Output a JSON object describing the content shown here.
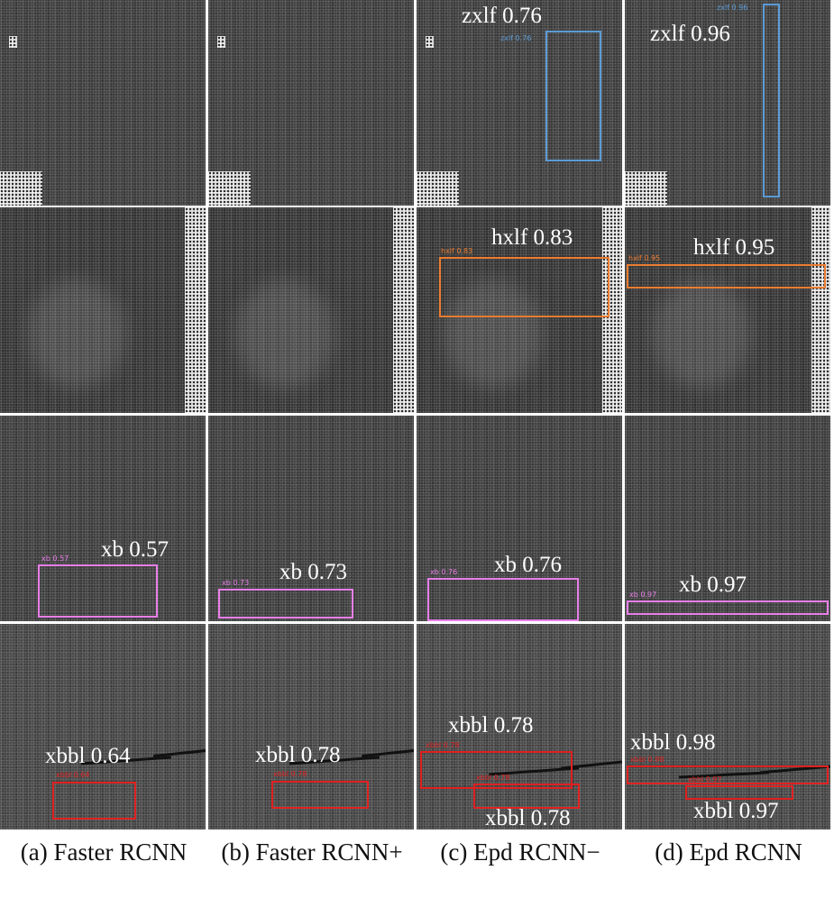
{
  "colors": {
    "zxlf": "#5b9bd5",
    "hxlf": "#ed7d31",
    "xb": "#e87fe8",
    "xbbl": "#e02020"
  },
  "rows": [
    {
      "class": "zxlf",
      "cells": [
        {
          "column": "a",
          "detections": []
        },
        {
          "column": "b",
          "detections": []
        },
        {
          "column": "c",
          "detections": [
            {
              "small": "zxlf 0.76",
              "big": "zxlf 0.76",
              "score": 0.76
            }
          ]
        },
        {
          "column": "d",
          "detections": [
            {
              "small": "zxlf 0.96",
              "big": "zxlf 0.96",
              "score": 0.96
            }
          ]
        }
      ]
    },
    {
      "class": "hxlf",
      "cells": [
        {
          "column": "a",
          "detections": []
        },
        {
          "column": "b",
          "detections": []
        },
        {
          "column": "c",
          "detections": [
            {
              "small": "hxlf 0.83",
              "big": "hxlf 0.83",
              "score": 0.83
            }
          ]
        },
        {
          "column": "d",
          "detections": [
            {
              "small": "hxlf 0.95",
              "big": "hxlf 0.95",
              "score": 0.95
            }
          ]
        }
      ]
    },
    {
      "class": "xb",
      "cells": [
        {
          "column": "a",
          "detections": [
            {
              "small": "xb 0.57",
              "big": "xb 0.57",
              "score": 0.57
            }
          ]
        },
        {
          "column": "b",
          "detections": [
            {
              "small": "xb 0.73",
              "big": "xb 0.73",
              "score": 0.73
            }
          ]
        },
        {
          "column": "c",
          "detections": [
            {
              "small": "xb 0.76",
              "big": "xb 0.76",
              "score": 0.76
            }
          ]
        },
        {
          "column": "d",
          "detections": [
            {
              "small": "xb 0.97",
              "big": "xb 0.97",
              "score": 0.97
            }
          ]
        }
      ]
    },
    {
      "class": "xbbl",
      "cells": [
        {
          "column": "a",
          "detections": [
            {
              "small": "xbbl 0.64",
              "big": "xbbl 0.64",
              "score": 0.64
            }
          ]
        },
        {
          "column": "b",
          "detections": [
            {
              "small": "xbbl 0.78",
              "big": "xbbl 0.78",
              "score": 0.78
            }
          ]
        },
        {
          "column": "c",
          "detections": [
            {
              "small": "xbbl 0.78",
              "big": "xbbl 0.78",
              "score": 0.78
            },
            {
              "small": "xbbl 0.78",
              "big": "xbbl 0.78",
              "score": 0.78
            }
          ]
        },
        {
          "column": "d",
          "detections": [
            {
              "small": "xbbl 0.98",
              "big": "xbbl 0.98",
              "score": 0.98
            },
            {
              "small": "xbbl 0.97",
              "big": "xbbl 0.97",
              "score": 0.97
            }
          ]
        }
      ]
    }
  ],
  "captions": {
    "a": "(a) Faster RCNN",
    "b": "(b) Faster RCNN+",
    "c": "(c) Epd RCNN−",
    "d": "(d) Epd RCNN"
  }
}
